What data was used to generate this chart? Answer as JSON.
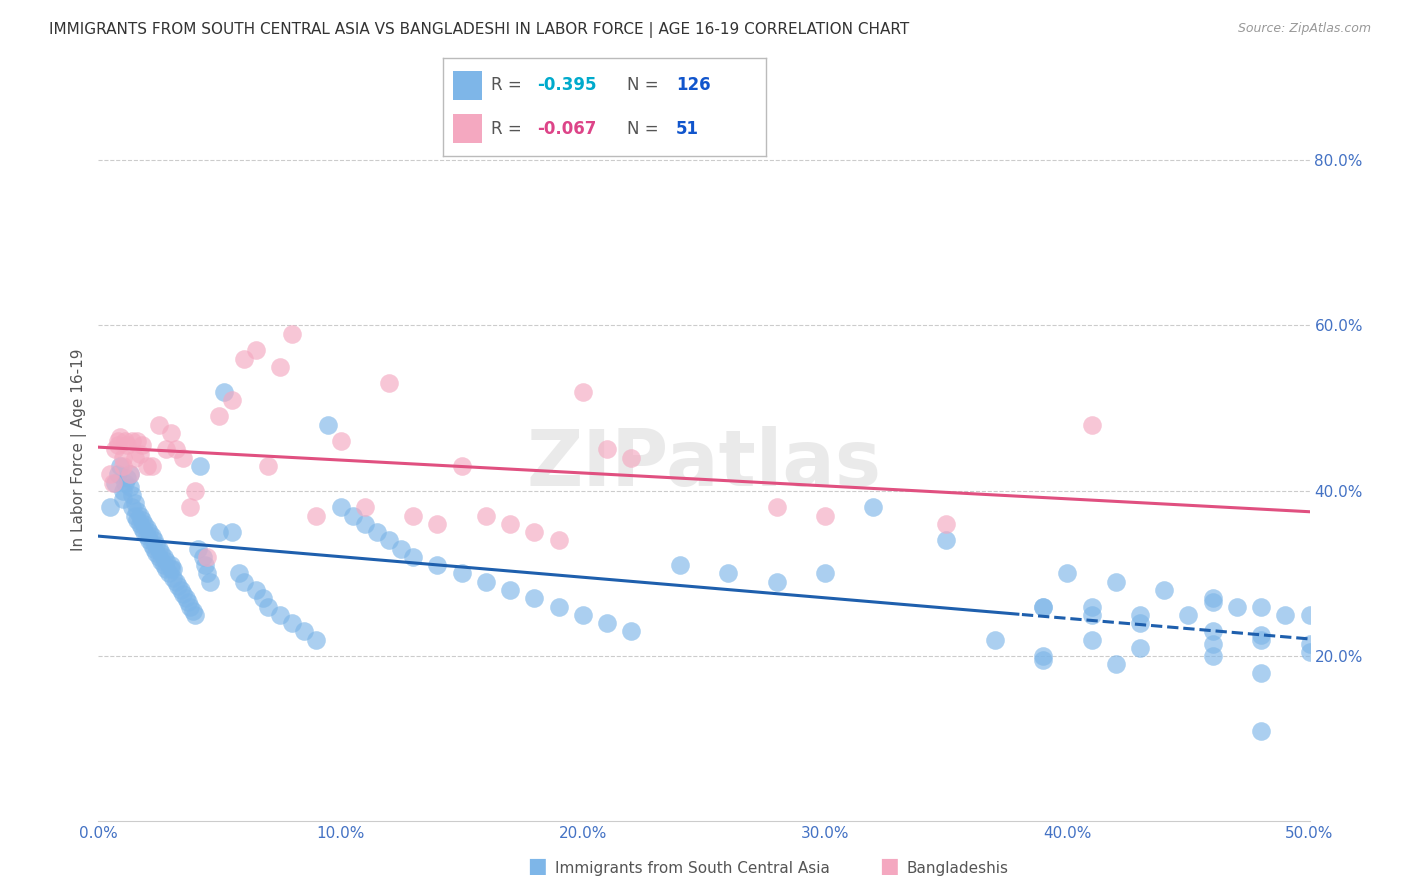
{
  "title": "IMMIGRANTS FROM SOUTH CENTRAL ASIA VS BANGLADESHI IN LABOR FORCE | AGE 16-19 CORRELATION CHART",
  "source": "Source: ZipAtlas.com",
  "ylabel": "In Labor Force | Age 16-19",
  "xlabel_ticks": [
    0.0,
    0.1,
    0.2,
    0.3,
    0.4,
    0.5
  ],
  "xlabel_labels": [
    "0.0%",
    "10.0%",
    "20.0%",
    "30.0%",
    "40.0%",
    "50.0%"
  ],
  "ylabel_ticks": [
    0.2,
    0.4,
    0.6,
    0.8
  ],
  "ylabel_labels": [
    "20.0%",
    "40.0%",
    "60.0%",
    "80.0%"
  ],
  "blue_R": -0.395,
  "blue_N": 126,
  "pink_R": -0.067,
  "pink_N": 51,
  "blue_color": "#7EB6E8",
  "pink_color": "#F4A8C0",
  "blue_line_color": "#1E5FAD",
  "pink_line_color": "#E05080",
  "axis_color": "#4472C4",
  "title_color": "#333333",
  "watermark": "ZIPatlas",
  "blue_scatter_x": [
    0.005,
    0.007,
    0.008,
    0.009,
    0.01,
    0.01,
    0.011,
    0.012,
    0.013,
    0.013,
    0.014,
    0.014,
    0.015,
    0.015,
    0.016,
    0.016,
    0.017,
    0.017,
    0.018,
    0.018,
    0.019,
    0.019,
    0.02,
    0.02,
    0.021,
    0.021,
    0.022,
    0.022,
    0.023,
    0.023,
    0.024,
    0.024,
    0.025,
    0.025,
    0.026,
    0.026,
    0.027,
    0.027,
    0.028,
    0.028,
    0.029,
    0.03,
    0.03,
    0.031,
    0.031,
    0.032,
    0.033,
    0.034,
    0.035,
    0.036,
    0.037,
    0.038,
    0.039,
    0.04,
    0.041,
    0.042,
    0.043,
    0.044,
    0.045,
    0.046,
    0.05,
    0.052,
    0.055,
    0.058,
    0.06,
    0.065,
    0.068,
    0.07,
    0.075,
    0.08,
    0.085,
    0.09,
    0.095,
    0.1,
    0.105,
    0.11,
    0.115,
    0.12,
    0.125,
    0.13,
    0.14,
    0.15,
    0.16,
    0.17,
    0.18,
    0.19,
    0.2,
    0.21,
    0.22,
    0.24,
    0.26,
    0.28,
    0.3,
    0.32,
    0.35,
    0.37,
    0.39,
    0.41,
    0.43,
    0.45,
    0.46,
    0.47,
    0.48,
    0.49,
    0.4,
    0.42,
    0.44,
    0.46,
    0.48,
    0.5,
    0.39,
    0.42,
    0.46,
    0.48,
    0.5,
    0.39,
    0.41,
    0.43,
    0.46,
    0.48,
    0.5,
    0.39,
    0.41,
    0.43,
    0.46,
    0.48
  ],
  "blue_scatter_y": [
    0.38,
    0.41,
    0.42,
    0.43,
    0.39,
    0.4,
    0.41,
    0.415,
    0.42,
    0.405,
    0.395,
    0.38,
    0.37,
    0.385,
    0.375,
    0.365,
    0.36,
    0.37,
    0.355,
    0.365,
    0.35,
    0.36,
    0.345,
    0.355,
    0.34,
    0.35,
    0.335,
    0.345,
    0.33,
    0.34,
    0.325,
    0.335,
    0.32,
    0.33,
    0.315,
    0.325,
    0.31,
    0.32,
    0.305,
    0.315,
    0.3,
    0.31,
    0.305,
    0.295,
    0.305,
    0.29,
    0.285,
    0.28,
    0.275,
    0.27,
    0.265,
    0.26,
    0.255,
    0.25,
    0.33,
    0.43,
    0.32,
    0.31,
    0.3,
    0.29,
    0.35,
    0.52,
    0.35,
    0.3,
    0.29,
    0.28,
    0.27,
    0.26,
    0.25,
    0.24,
    0.23,
    0.22,
    0.48,
    0.38,
    0.37,
    0.36,
    0.35,
    0.34,
    0.33,
    0.32,
    0.31,
    0.3,
    0.29,
    0.28,
    0.27,
    0.26,
    0.25,
    0.24,
    0.23,
    0.31,
    0.3,
    0.29,
    0.3,
    0.38,
    0.34,
    0.22,
    0.26,
    0.26,
    0.25,
    0.25,
    0.265,
    0.26,
    0.11,
    0.25,
    0.3,
    0.29,
    0.28,
    0.27,
    0.26,
    0.25,
    0.2,
    0.19,
    0.2,
    0.18,
    0.205,
    0.195,
    0.22,
    0.21,
    0.215,
    0.225,
    0.215,
    0.26,
    0.25,
    0.24,
    0.23,
    0.22
  ],
  "pink_scatter_x": [
    0.005,
    0.006,
    0.007,
    0.008,
    0.008,
    0.009,
    0.01,
    0.01,
    0.011,
    0.012,
    0.013,
    0.014,
    0.015,
    0.016,
    0.017,
    0.018,
    0.02,
    0.022,
    0.025,
    0.028,
    0.03,
    0.032,
    0.035,
    0.038,
    0.04,
    0.045,
    0.05,
    0.055,
    0.06,
    0.065,
    0.07,
    0.075,
    0.08,
    0.09,
    0.1,
    0.11,
    0.12,
    0.13,
    0.14,
    0.15,
    0.16,
    0.17,
    0.18,
    0.19,
    0.2,
    0.21,
    0.22,
    0.28,
    0.3,
    0.35,
    0.41
  ],
  "pink_scatter_y": [
    0.42,
    0.41,
    0.45,
    0.455,
    0.46,
    0.465,
    0.44,
    0.43,
    0.46,
    0.455,
    0.42,
    0.46,
    0.44,
    0.46,
    0.445,
    0.455,
    0.43,
    0.43,
    0.48,
    0.45,
    0.47,
    0.45,
    0.44,
    0.38,
    0.4,
    0.32,
    0.49,
    0.51,
    0.56,
    0.57,
    0.43,
    0.55,
    0.59,
    0.37,
    0.46,
    0.38,
    0.53,
    0.37,
    0.36,
    0.43,
    0.37,
    0.36,
    0.35,
    0.34,
    0.52,
    0.45,
    0.44,
    0.38,
    0.37,
    0.36,
    0.48
  ]
}
